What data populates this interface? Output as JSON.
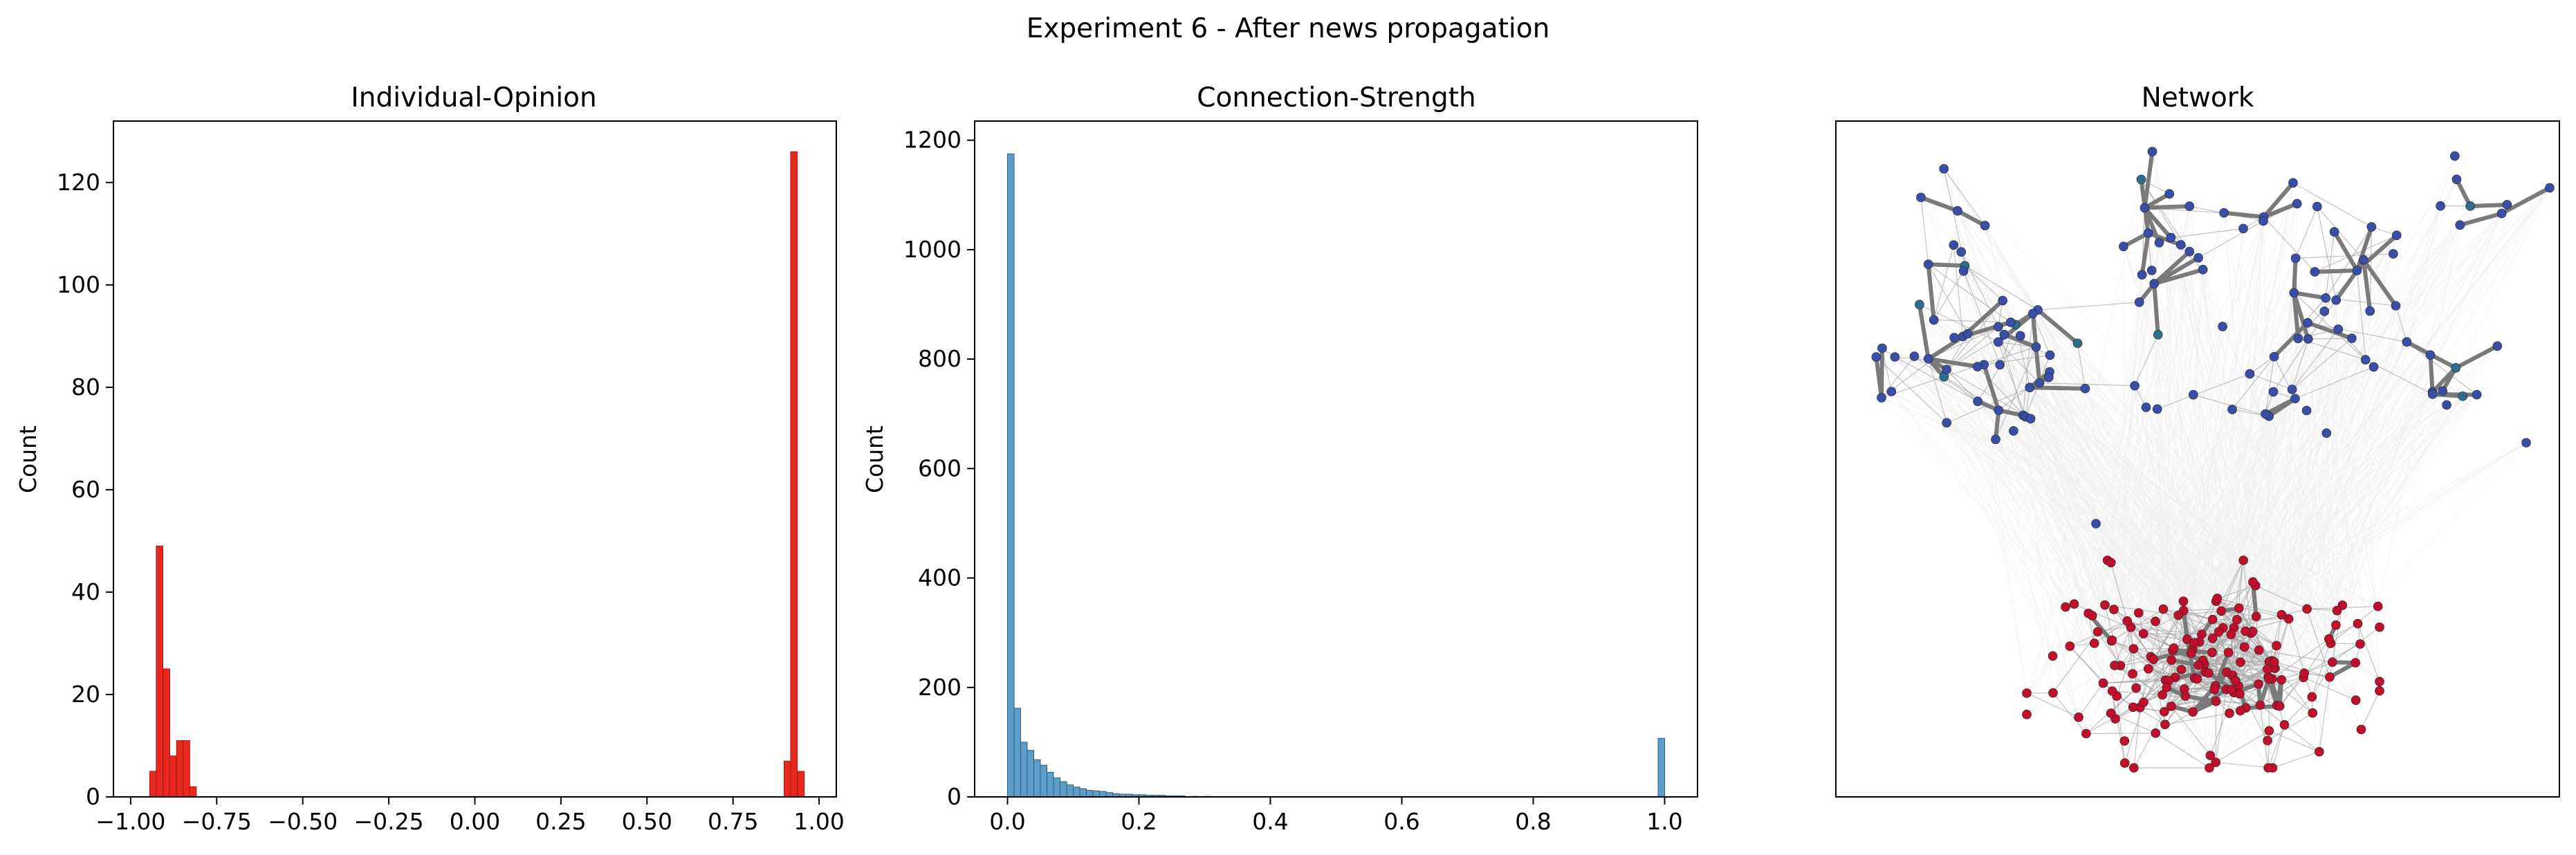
{
  "figure": {
    "suptitle": "Experiment 6 - After news propagation"
  },
  "colors": {
    "opinion_bar": "#e8281e",
    "opinion_edge": "#9e1b13",
    "strength_bar": "#5b9ec9",
    "strength_edge": "#2c5f80",
    "node_blue": "#3a4ea8",
    "node_teal": "#2e6e8a",
    "node_red": "#c0102e",
    "edge_strong": "#7a7a7a",
    "edge_weak": "#d8d8d8",
    "edge_faint": "#eeeeee"
  },
  "chart_data": [
    {
      "type": "bar",
      "title": "Individual-Opinion",
      "xlabel": "",
      "ylabel": "Count",
      "xlim": [
        -1.05,
        1.05
      ],
      "ylim": [
        0,
        132
      ],
      "xticks": [
        -1.0,
        -0.75,
        -0.5,
        -0.25,
        0.0,
        0.25,
        0.5,
        0.75,
        1.0
      ],
      "xtick_labels": [
        "−1.00",
        "−0.75",
        "−0.50",
        "−0.25",
        "0.00",
        "0.25",
        "0.50",
        "0.75",
        "1.00"
      ],
      "yticks": [
        0,
        20,
        40,
        60,
        80,
        100,
        120
      ],
      "ytick_labels": [
        "0",
        "20",
        "40",
        "60",
        "80",
        "100",
        "120"
      ],
      "bin_width": 0.0194,
      "bins": [
        {
          "x": -0.935,
          "count": 5
        },
        {
          "x": -0.916,
          "count": 49
        },
        {
          "x": -0.896,
          "count": 25
        },
        {
          "x": -0.877,
          "count": 8
        },
        {
          "x": -0.857,
          "count": 11
        },
        {
          "x": -0.838,
          "count": 11
        },
        {
          "x": -0.819,
          "count": 2
        },
        {
          "x": 0.908,
          "count": 7
        },
        {
          "x": 0.927,
          "count": 126
        },
        {
          "x": 0.947,
          "count": 5
        }
      ]
    },
    {
      "type": "bar",
      "title": "Connection-Strength",
      "xlabel": "",
      "ylabel": "Count",
      "xlim": [
        -0.05,
        1.05
      ],
      "ylim": [
        0,
        1235
      ],
      "xticks": [
        0.0,
        0.2,
        0.4,
        0.6,
        0.8,
        1.0
      ],
      "xtick_labels": [
        "0.0",
        "0.2",
        "0.4",
        "0.6",
        "0.8",
        "1.0"
      ],
      "yticks": [
        0,
        200,
        400,
        600,
        800,
        1000,
        1200
      ],
      "ytick_labels": [
        "0",
        "200",
        "400",
        "600",
        "800",
        "1000",
        "1200"
      ],
      "bin_width": 0.01,
      "bins": [
        {
          "x": 0.005,
          "count": 1175
        },
        {
          "x": 0.015,
          "count": 162
        },
        {
          "x": 0.025,
          "count": 100
        },
        {
          "x": 0.035,
          "count": 85
        },
        {
          "x": 0.045,
          "count": 68
        },
        {
          "x": 0.055,
          "count": 58
        },
        {
          "x": 0.065,
          "count": 45
        },
        {
          "x": 0.075,
          "count": 35
        },
        {
          "x": 0.085,
          "count": 28
        },
        {
          "x": 0.095,
          "count": 22
        },
        {
          "x": 0.105,
          "count": 18
        },
        {
          "x": 0.115,
          "count": 15
        },
        {
          "x": 0.125,
          "count": 12
        },
        {
          "x": 0.135,
          "count": 11
        },
        {
          "x": 0.145,
          "count": 10
        },
        {
          "x": 0.155,
          "count": 8
        },
        {
          "x": 0.165,
          "count": 6
        },
        {
          "x": 0.175,
          "count": 5
        },
        {
          "x": 0.185,
          "count": 5
        },
        {
          "x": 0.195,
          "count": 4
        },
        {
          "x": 0.205,
          "count": 4
        },
        {
          "x": 0.215,
          "count": 3
        },
        {
          "x": 0.225,
          "count": 3
        },
        {
          "x": 0.235,
          "count": 3
        },
        {
          "x": 0.245,
          "count": 2
        },
        {
          "x": 0.255,
          "count": 2
        },
        {
          "x": 0.265,
          "count": 2
        },
        {
          "x": 0.285,
          "count": 1
        },
        {
          "x": 0.305,
          "count": 1
        },
        {
          "x": 0.995,
          "count": 107
        }
      ]
    },
    {
      "type": "network",
      "title": "Network",
      "groups": [
        {
          "color_key": "node_blue",
          "node_count": 130
        },
        {
          "color_key": "node_red",
          "node_count": 160
        }
      ]
    }
  ]
}
